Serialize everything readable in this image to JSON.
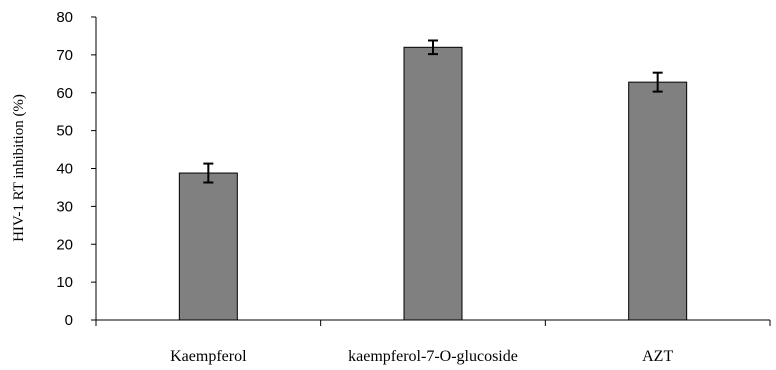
{
  "chart_data": {
    "type": "bar",
    "title": "",
    "xlabel": "",
    "ylabel": "HIV-1 RT inhibition  (%)",
    "ylim": [
      0,
      80
    ],
    "yticks": [
      0,
      10,
      20,
      30,
      40,
      50,
      60,
      70,
      80
    ],
    "categories": [
      "Kaempferol",
      "kaempferol-7-O-glucoside",
      "AZT"
    ],
    "values": [
      38.8,
      72.0,
      62.8
    ],
    "error": [
      2.5,
      1.8,
      2.5
    ],
    "bar_color": "#808080",
    "grid": false,
    "legend": "none"
  }
}
